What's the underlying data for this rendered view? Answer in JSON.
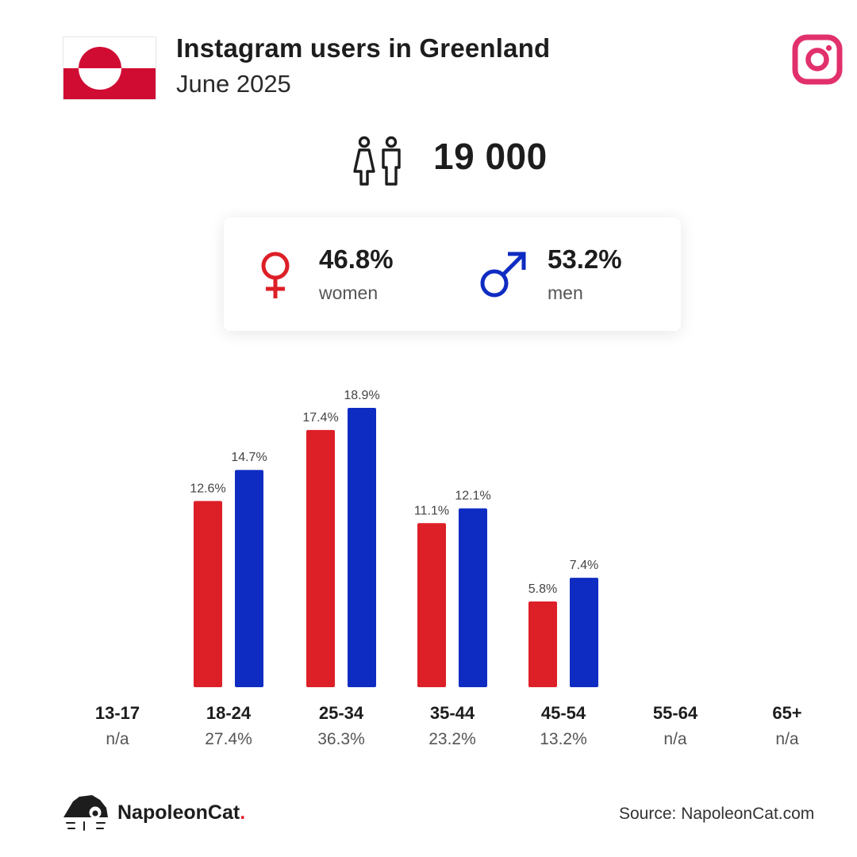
{
  "header": {
    "title": "Instagram users in Greenland",
    "subtitle": "June 2025"
  },
  "total": {
    "value": "19 000"
  },
  "gender": {
    "women_pct": "46.8%",
    "women_label": "women",
    "men_pct": "53.2%",
    "men_label": "men"
  },
  "colors": {
    "women": "#dd1f27",
    "men": "#0f2cc2",
    "instagram": "#e1306c",
    "flag_red": "#d00c33"
  },
  "chart_data": {
    "type": "bar",
    "categories": [
      "13-17",
      "18-24",
      "25-34",
      "35-44",
      "45-54",
      "55-64",
      "65+"
    ],
    "category_totals": [
      "n/a",
      "27.4%",
      "36.3%",
      "23.2%",
      "13.2%",
      "n/a",
      "n/a"
    ],
    "series": [
      {
        "key": "women",
        "values": [
          null,
          12.6,
          17.4,
          11.1,
          5.8,
          null,
          null
        ],
        "labels": [
          "",
          "12.6%",
          "17.4%",
          "11.1%",
          "5.8%",
          "",
          ""
        ]
      },
      {
        "key": "men",
        "values": [
          null,
          14.7,
          18.9,
          12.1,
          7.4,
          null,
          null
        ],
        "labels": [
          "",
          "14.7%",
          "18.9%",
          "12.1%",
          "7.4%",
          "",
          ""
        ]
      }
    ],
    "ylim": [
      0,
      18.9
    ],
    "grid": false
  },
  "footer": {
    "brand": "NapoleonCat",
    "brand_dot": ".",
    "source": "Source: NapoleonCat.com"
  }
}
